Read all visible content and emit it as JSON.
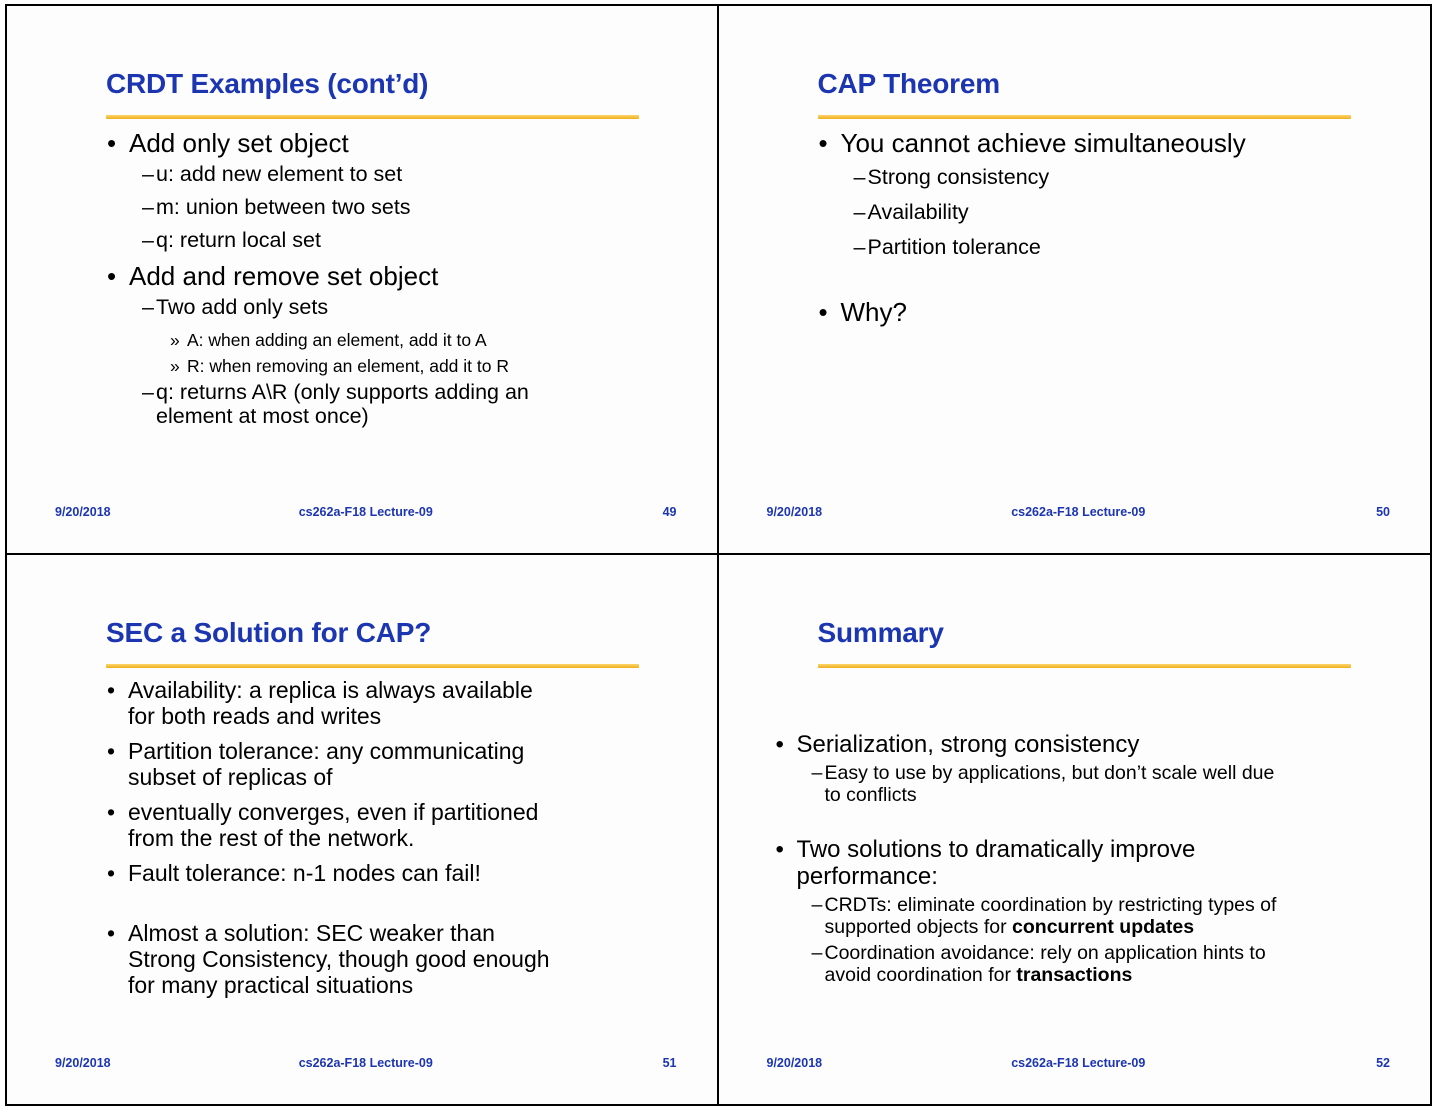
{
  "markers": {
    "l1": "•",
    "l2": "–",
    "l3": "»"
  },
  "colors": {
    "title-blue": "#1c35b0",
    "underline-gold": "#efae1f",
    "underline-gold-light": "#fbd468",
    "body-text": "#000000"
  },
  "slides": [
    {
      "title": "CRDT Examples (cont’d)",
      "bullets": [
        {
          "level": 1,
          "text": "Add only set object"
        },
        {
          "level": 2,
          "text": "u: add new element to set"
        },
        {
          "level": 2,
          "text": "m: union between two sets"
        },
        {
          "level": 2,
          "text": "q: return local set"
        },
        {
          "level": 1,
          "text": "Add and remove set object"
        },
        {
          "level": 2,
          "text": "Two add only sets"
        },
        {
          "level": 3,
          "text": "A: when adding an element, add it to A"
        },
        {
          "level": 3,
          "text": "R: when removing an element, add it to R"
        },
        {
          "level": 2,
          "text": "q: returns A\\R (only supports adding an\nelement at most once)"
        }
      ],
      "footer": {
        "date": "9/20/2018",
        "course": "cs262a-F18 Lecture-09",
        "page": "49"
      }
    },
    {
      "title": "CAP Theorem",
      "bullets": [
        {
          "level": 1,
          "text": "You cannot achieve simultaneously"
        },
        {
          "level": 2,
          "text": "Strong consistency"
        },
        {
          "level": 2,
          "text": "Availability"
        },
        {
          "level": 2,
          "text": "Partition tolerance"
        },
        {
          "level": 1,
          "text": "Why?"
        }
      ],
      "footer": {
        "date": "9/20/2018",
        "course": "cs262a-F18 Lecture-09",
        "page": "50"
      }
    },
    {
      "title": "SEC a Solution for CAP?",
      "bullets": [
        {
          "level": 1,
          "text": "Availability: a replica is always available\nfor both reads and writes"
        },
        {
          "level": 1,
          "text": "Partition tolerance: any communicating\nsubset of replicas of"
        },
        {
          "level": 1,
          "text": "eventually converges, even if partitioned\nfrom the rest of the network."
        },
        {
          "level": 1,
          "text": "Fault tolerance: n-1 nodes can fail!"
        },
        {
          "level": 1,
          "text": "Almost a solution: SEC weaker than\nStrong Consistency, though good enough\nfor many practical situations"
        }
      ],
      "footer": {
        "date": "9/20/2018",
        "course": "cs262a-F18 Lecture-09",
        "page": "51"
      }
    },
    {
      "title": "Summary",
      "bullets": [
        {
          "level": 1,
          "text": "Serialization, strong consistency"
        },
        {
          "level": 2,
          "text": "Easy to use by applications, but don’t scale well due\nto conflicts"
        },
        {
          "level": 1,
          "text": "Two solutions to dramatically improve\nperformance:"
        },
        {
          "level": 2,
          "text": "CRDTs: eliminate coordination by restricting types of\nsupported objects for ",
          "bold": "concurrent updates"
        },
        {
          "level": 2,
          "text": "Coordination avoidance: rely on application hints to\navoid coordination for ",
          "bold": "transactions"
        }
      ],
      "footer": {
        "date": "9/20/2018",
        "course": "cs262a-F18 Lecture-09",
        "page": "52"
      }
    }
  ]
}
